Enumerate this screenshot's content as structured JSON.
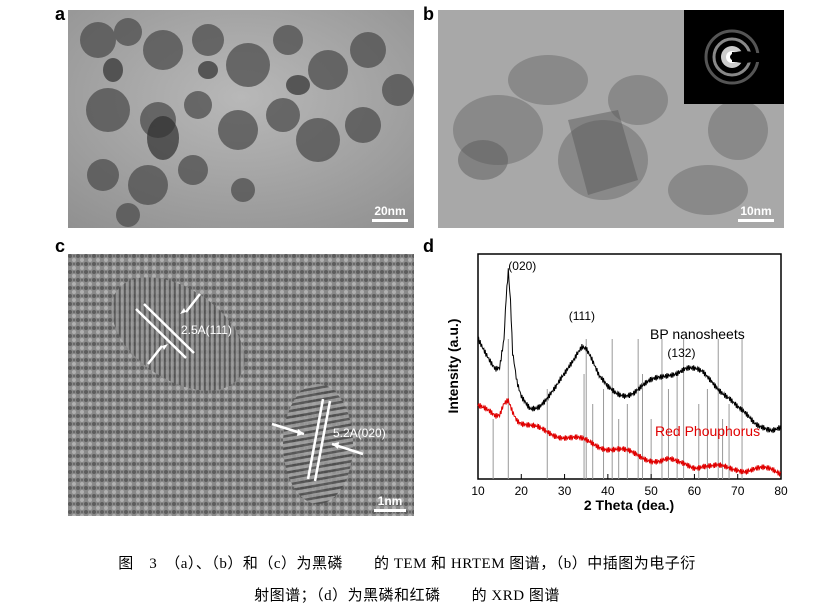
{
  "panels": {
    "a": {
      "letter": "a",
      "scale_label": "20nm"
    },
    "b": {
      "letter": "b",
      "scale_label": "10nm"
    },
    "c": {
      "letter": "c",
      "scale_label": "1nm",
      "annotations": [
        "2.5A(111)",
        "5.2A(020)"
      ]
    },
    "d": {
      "letter": "d"
    }
  },
  "chart_data": {
    "type": "line",
    "xlabel": "2 Theta (dea.)",
    "ylabel": "Intensity (a.u.)",
    "xlim": [
      10,
      80
    ],
    "x_ticks": [
      10,
      20,
      30,
      40,
      50,
      60,
      70,
      80
    ],
    "series": [
      {
        "name": "BP nanosheets",
        "color": "#000000",
        "x": [
          10,
          12,
          14,
          15,
          16,
          16.5,
          17,
          17.5,
          18,
          19,
          20,
          22,
          24,
          26,
          28,
          30,
          32,
          33,
          34,
          35,
          36,
          37,
          38,
          40,
          42,
          44,
          46,
          48,
          50,
          52,
          54,
          56,
          58,
          60,
          62,
          64,
          66,
          68,
          70,
          72,
          74,
          76,
          78,
          80
        ],
        "y": [
          0.62,
          0.56,
          0.5,
          0.5,
          0.62,
          0.8,
          0.92,
          0.78,
          0.55,
          0.42,
          0.36,
          0.32,
          0.33,
          0.36,
          0.4,
          0.46,
          0.53,
          0.57,
          0.6,
          0.59,
          0.55,
          0.5,
          0.45,
          0.4,
          0.38,
          0.38,
          0.39,
          0.41,
          0.43,
          0.45,
          0.47,
          0.48,
          0.49,
          0.48,
          0.47,
          0.44,
          0.4,
          0.36,
          0.31,
          0.28,
          0.25,
          0.24,
          0.22,
          0.22
        ]
      },
      {
        "name": "Red Phouphorus",
        "color": "#e00000",
        "x": [
          10,
          12,
          14,
          15,
          16,
          17,
          18,
          19,
          20,
          22,
          24,
          26,
          28,
          30,
          32,
          34,
          36,
          38,
          40,
          42,
          44,
          46,
          48,
          50,
          52,
          54,
          56,
          58,
          60,
          62,
          64,
          66,
          68,
          70,
          72,
          74,
          76,
          78,
          80
        ],
        "y": [
          0.33,
          0.3,
          0.27,
          0.28,
          0.34,
          0.36,
          0.31,
          0.27,
          0.25,
          0.23,
          0.22,
          0.21,
          0.2,
          0.19,
          0.18,
          0.17,
          0.16,
          0.15,
          0.14,
          0.13,
          0.12,
          0.11,
          0.1,
          0.09,
          0.08,
          0.08,
          0.07,
          0.07,
          0.06,
          0.06,
          0.05,
          0.05,
          0.05,
          0.05,
          0.04,
          0.04,
          0.04,
          0.04,
          0.03
        ]
      }
    ],
    "peak_labels": [
      {
        "text": "(020)",
        "x": 17
      },
      {
        "text": "(111)",
        "x": 34
      },
      {
        "text": "(132)",
        "x": 57
      }
    ],
    "reference_lines_x": [
      13.5,
      17,
      26,
      34.5,
      35,
      36.5,
      39,
      41,
      42.5,
      44.5,
      47,
      48,
      50,
      52.5,
      54,
      56,
      57.5,
      61,
      63,
      65.5,
      66.5,
      68,
      71
    ]
  },
  "caption": {
    "line1": "图　3　（a）、（b）和（c）为黑磷　　的 TEM 和 HRTEM 图谱，（b）中插图为电子衍",
    "line2": "射图谱；（d）为黑磷和红磷　　的 XRD 图谱"
  }
}
